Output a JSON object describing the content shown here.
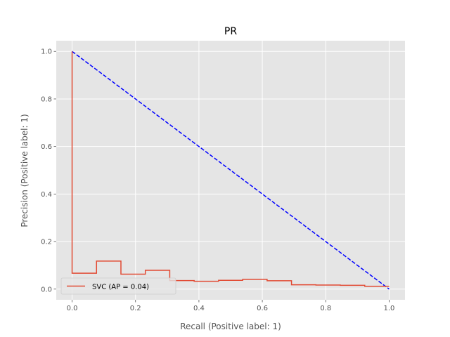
{
  "chart_data": {
    "type": "line",
    "title": "PR",
    "xlabel": "Recall (Positive label: 1)",
    "ylabel": "Precision (Positive label: 1)",
    "xlim": [
      -0.05,
      1.05
    ],
    "ylim": [
      -0.045,
      1.045
    ],
    "xticks": [
      0.0,
      0.2,
      0.4,
      0.6,
      0.8,
      1.0
    ],
    "yticks": [
      0.0,
      0.2,
      0.4,
      0.6,
      0.8,
      1.0
    ],
    "xtick_labels": [
      "0.0",
      "0.2",
      "0.4",
      "0.6",
      "0.8",
      "1.0"
    ],
    "ytick_labels": [
      "0.0",
      "0.2",
      "0.4",
      "0.6",
      "0.8",
      "1.0"
    ],
    "grid": true,
    "legend_position": "lower-left",
    "series": [
      {
        "name": "SVC (AP = 0.04)",
        "color": "#e24a33",
        "style": "step",
        "x": [
          0.0,
          0.0,
          0.0,
          0.077,
          0.077,
          0.154,
          0.154,
          0.231,
          0.231,
          0.308,
          0.308,
          0.385,
          0.385,
          0.462,
          0.462,
          0.538,
          0.538,
          0.615,
          0.615,
          0.692,
          0.692,
          0.769,
          0.769,
          0.846,
          0.846,
          0.923,
          0.923,
          1.0
        ],
        "y": [
          1.0,
          0.067,
          0.067,
          0.067,
          0.118,
          0.118,
          0.063,
          0.063,
          0.079,
          0.079,
          0.036,
          0.036,
          0.033,
          0.033,
          0.037,
          0.037,
          0.041,
          0.041,
          0.035,
          0.035,
          0.018,
          0.018,
          0.017,
          0.017,
          0.016,
          0.016,
          0.012,
          0.012
        ]
      },
      {
        "name": "",
        "color": "#0000ff",
        "style": "dashed",
        "x": [
          0.0,
          1.0
        ],
        "y": [
          1.0,
          0.0
        ]
      }
    ]
  }
}
